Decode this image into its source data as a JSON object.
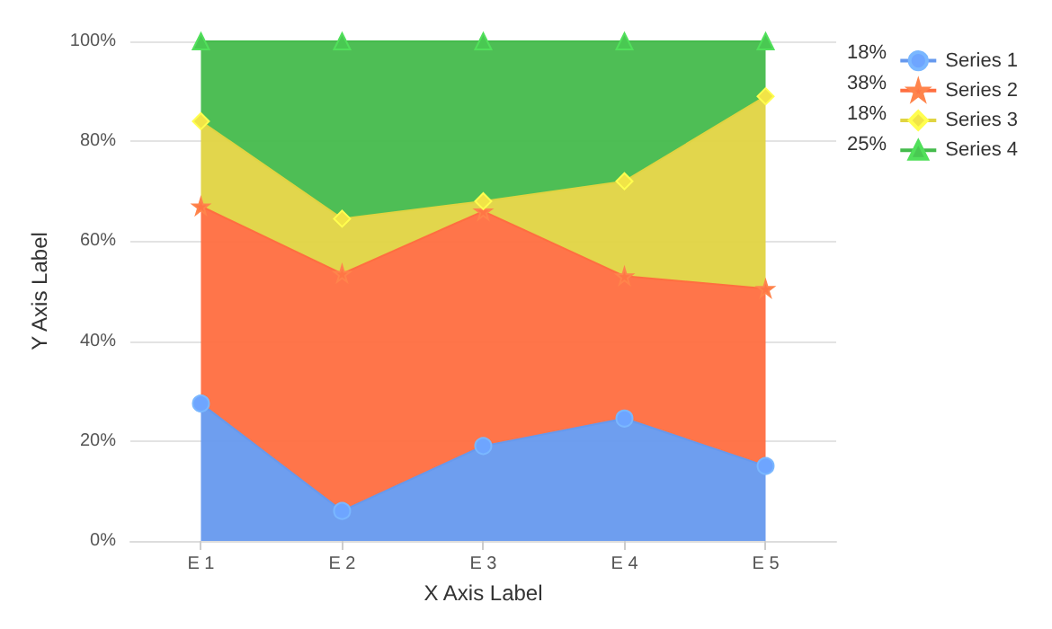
{
  "chart_data": {
    "type": "area",
    "stacked": true,
    "xlabel": "X Axis Label",
    "ylabel": "Y Axis Label",
    "categories": [
      "E 1",
      "E 2",
      "E 3",
      "E 4",
      "E 5"
    ],
    "series": [
      {
        "name": "Series 1",
        "color": "#6699ee",
        "marker": "circle",
        "values": [
          27.5,
          6,
          19,
          24.5,
          15
        ]
      },
      {
        "name": "Series 2",
        "color": "#ff6e40",
        "marker": "star",
        "values": [
          39.5,
          47.5,
          47,
          28.5,
          35.5
        ]
      },
      {
        "name": "Series 3",
        "color": "#e0d442",
        "marker": "diamond",
        "values": [
          17,
          11,
          2,
          19,
          38.5
        ]
      },
      {
        "name": "Series 4",
        "color": "#44bb4c",
        "marker": "triangle",
        "values": [
          16,
          35.5,
          32,
          28,
          11
        ]
      }
    ],
    "ylim": [
      0,
      100
    ],
    "yticks": [
      {
        "value": 0,
        "label": "0%"
      },
      {
        "value": 20,
        "label": "20%"
      },
      {
        "value": 40,
        "label": "40%"
      },
      {
        "value": 60,
        "label": "60%"
      },
      {
        "value": 80,
        "label": "80%"
      },
      {
        "value": 100,
        "label": "100%"
      }
    ],
    "grid": "y",
    "legend": "top right",
    "annotations": [
      "18%",
      "38%",
      "18%",
      "25%"
    ]
  }
}
